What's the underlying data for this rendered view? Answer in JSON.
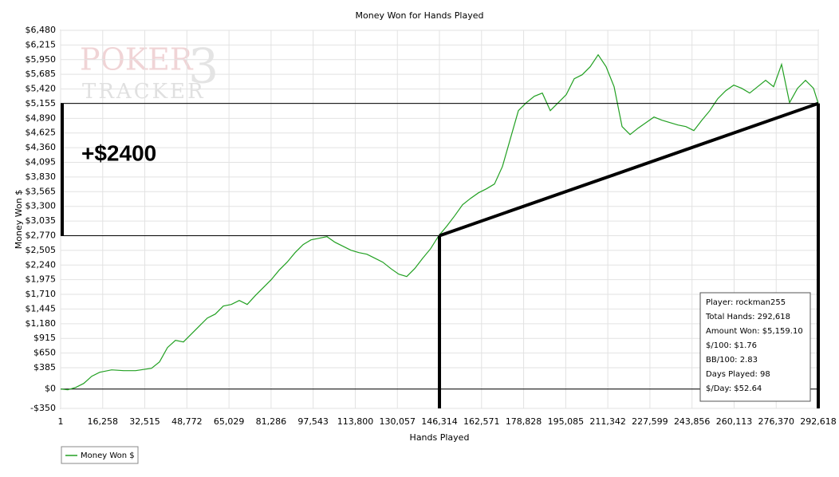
{
  "chart_data": {
    "type": "line",
    "title": "Money Won for Hands Played",
    "x_label": "Hands Played",
    "y_label": "Money Won $",
    "watermark": [
      "POKER",
      "TRACKER",
      "3"
    ],
    "x": [
      1,
      2772,
      5853,
      8933,
      12013,
      15093,
      19714,
      24334,
      28954,
      35115,
      38195,
      41275,
      44355,
      47436,
      50516,
      53596,
      56676,
      59756,
      62836,
      65916,
      68997,
      72077,
      75157,
      78237,
      81317,
      84397,
      87478,
      90558,
      93638,
      96718,
      99798,
      102878,
      105959,
      109039,
      112119,
      115199,
      118279,
      121359,
      124440,
      127520,
      130600,
      133680,
      136760,
      139840,
      142921,
      146001,
      149081,
      152161,
      155241,
      158321,
      161402,
      164482,
      167562,
      170642,
      173722,
      176802,
      179882,
      182963,
      186043,
      189123,
      192203,
      195283,
      198363,
      201444,
      204524,
      207604,
      210684,
      213764,
      216844,
      219925,
      223005,
      226085,
      229165,
      232245,
      235325,
      238406,
      241486,
      244566,
      247646,
      250726,
      253806,
      256887,
      259967,
      263047,
      266127,
      269207,
      272287,
      275368,
      278448,
      281528,
      284608,
      287688,
      290768,
      292618
    ],
    "series": [
      {
        "name": "Money Won $",
        "color": "#22a022",
        "values": [
          0,
          -14,
          29,
          101,
          231,
          303,
          346,
          331,
          331,
          375,
          490,
          749,
          879,
          850,
          994,
          1138,
          1282,
          1355,
          1499,
          1527,
          1600,
          1527,
          1686,
          1830,
          1974,
          2147,
          2291,
          2464,
          2608,
          2695,
          2723,
          2752,
          2651,
          2579,
          2507,
          2464,
          2435,
          2363,
          2291,
          2176,
          2075,
          2032,
          2176,
          2363,
          2536,
          2767,
          2940,
          3127,
          3329,
          3444,
          3545,
          3617,
          3703,
          4020,
          4525,
          5029,
          5173,
          5288,
          5346,
          5029,
          5173,
          5317,
          5605,
          5678,
          5822,
          6038,
          5822,
          5461,
          4741,
          4597,
          4712,
          4813,
          4914,
          4856,
          4813,
          4770,
          4741,
          4669,
          4856,
          5029,
          5245,
          5389,
          5490,
          5433,
          5346,
          5461,
          5577,
          5461,
          5865,
          5173,
          5433,
          5577,
          5433,
          5159
        ]
      }
    ],
    "xlim": [
      1,
      292618
    ],
    "ylim": [
      -350,
      6480
    ],
    "xticks": [
      1,
      {
        "value": 16258,
        "label": "16,258"
      },
      {
        "value": 32515,
        "label": "32,515"
      },
      {
        "value": 48772,
        "label": "48,772"
      },
      {
        "value": 65029,
        "label": "65,029"
      },
      {
        "value": 81286,
        "label": "81,286"
      },
      {
        "value": 97543,
        "label": "97,543"
      },
      {
        "value": 113800,
        "label": "113,800"
      },
      {
        "value": 130057,
        "label": "130,057"
      },
      {
        "value": 146314,
        "label": "146,314"
      },
      {
        "value": 162571,
        "label": "162,571"
      },
      {
        "value": 178828,
        "label": "178,828"
      },
      {
        "value": 195085,
        "label": "195,085"
      },
      {
        "value": 211342,
        "label": "211,342"
      },
      {
        "value": 227599,
        "label": "227,599"
      },
      {
        "value": 243856,
        "label": "243,856"
      },
      {
        "value": 260113,
        "label": "260,113"
      },
      {
        "value": 276370,
        "label": "276,370"
      },
      {
        "value": 292618,
        "label": "292,618"
      }
    ],
    "yticks": [
      {
        "value": -350,
        "label": "-$350"
      },
      {
        "value": 0,
        "label": "$0"
      },
      {
        "value": 385,
        "label": "$385"
      },
      {
        "value": 650,
        "label": "$650"
      },
      {
        "value": 915,
        "label": "$915"
      },
      {
        "value": 1180,
        "label": "$1,180"
      },
      {
        "value": 1445,
        "label": "$1,445"
      },
      {
        "value": 1710,
        "label": "$1,710"
      },
      {
        "value": 1975,
        "label": "$1,975"
      },
      {
        "value": 2240,
        "label": "$2,240"
      },
      {
        "value": 2505,
        "label": "$2,505"
      },
      {
        "value": 2770,
        "label": "$2,770"
      },
      {
        "value": 3035,
        "label": "$3,035"
      },
      {
        "value": 3300,
        "label": "$3,300"
      },
      {
        "value": 3565,
        "label": "$3,565"
      },
      {
        "value": 3830,
        "label": "$3,830"
      },
      {
        "value": 4095,
        "label": "$4,095"
      },
      {
        "value": 4360,
        "label": "$4,360"
      },
      {
        "value": 4625,
        "label": "$4,625"
      },
      {
        "value": 4890,
        "label": "$4,890"
      },
      {
        "value": 5155,
        "label": "$5,155"
      },
      {
        "value": 5420,
        "label": "$5,420"
      },
      {
        "value": 5685,
        "label": "$5,685"
      },
      {
        "value": 5950,
        "label": "$5,950"
      },
      {
        "value": 6215,
        "label": "$6,215"
      },
      {
        "value": 6480,
        "label": "$6,480"
      }
    ],
    "grid": true,
    "annotation": {
      "label": "+$2400",
      "low": 2770,
      "high": 5159,
      "start_x": 146314,
      "end_x": 292618
    },
    "stats": [
      "Player: rockman255",
      "Total Hands: 292,618",
      "Amount Won: $5,159.10",
      "$/100: $1.76",
      "BB/100: 2.83",
      "Days Played: 98",
      "$/Day: $52.64"
    ],
    "legend_position": "bottom-left"
  }
}
